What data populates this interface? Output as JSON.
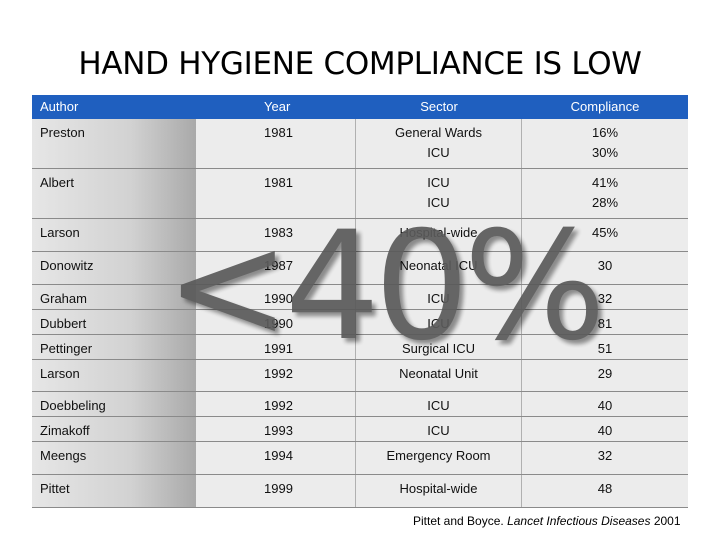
{
  "title": "HAND HYGIENE COMPLIANCE IS LOW",
  "table": {
    "headers": [
      "Author",
      "Year",
      "Sector",
      "Compliance"
    ],
    "rows": [
      {
        "author": "Preston",
        "year": "1981",
        "sector": [
          "General Wards",
          "ICU"
        ],
        "compliance": [
          "16%",
          "30%"
        ]
      },
      {
        "author": "Albert",
        "year": "1981",
        "sector": [
          "ICU",
          "ICU"
        ],
        "compliance": [
          "41%",
          "28%"
        ]
      },
      {
        "author": "Larson",
        "year": "1983",
        "sector": [
          "Hospital-wide"
        ],
        "compliance": [
          "45%"
        ]
      },
      {
        "author": "Donowitz",
        "year": "1987",
        "sector": [
          "Neonatal ICU"
        ],
        "compliance": [
          "30"
        ]
      },
      {
        "author": "Graham",
        "year": "1990",
        "sector": [
          "ICU"
        ],
        "compliance": [
          "32"
        ]
      },
      {
        "author": "Dubbert",
        "year": "1990",
        "sector": [
          "ICU"
        ],
        "compliance": [
          "81"
        ]
      },
      {
        "author": "Pettinger",
        "year": "1991",
        "sector": [
          "Surgical ICU"
        ],
        "compliance": [
          "51"
        ]
      },
      {
        "author": "Larson",
        "year": "1992",
        "sector": [
          "Neonatal Unit"
        ],
        "compliance": [
          "29"
        ]
      },
      {
        "author": "Doebbeling",
        "year": "1992",
        "sector": [
          "ICU"
        ],
        "compliance": [
          "40"
        ]
      },
      {
        "author": "Zimakoff",
        "year": "1993",
        "sector": [
          "ICU"
        ],
        "compliance": [
          "40"
        ]
      },
      {
        "author": "Meengs",
        "year": "1994",
        "sector": [
          "Emergency Room"
        ],
        "compliance": [
          "32"
        ]
      },
      {
        "author": "Pittet",
        "year": "1999",
        "sector": [
          "Hospital-wide"
        ],
        "compliance": [
          "48"
        ]
      }
    ]
  },
  "overlay_text": "<40%",
  "citation": {
    "prefix": "Pittet and Boyce. ",
    "journal": "Lancet Infectious Diseases",
    "year": " 2001"
  }
}
